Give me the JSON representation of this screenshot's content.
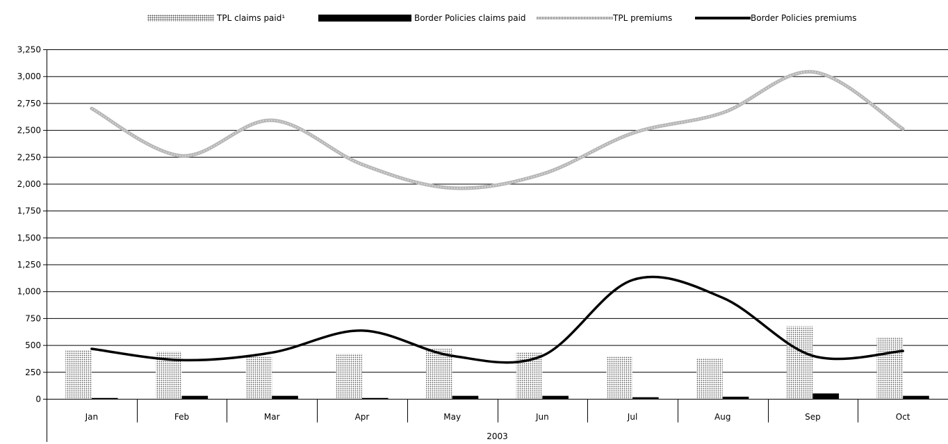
{
  "legend": {
    "tpl_claims": "TPL claims paid¹",
    "border_claims": "Border Policies claims paid",
    "tpl_premiums": "TPL premiums",
    "border_premiums": "Border Policies premiums"
  },
  "colors": {
    "tpl_premiums": "#b5b5b5",
    "border_premiums": "#000000",
    "border_claims": "#000000",
    "tpl_claims_fill": "#9a9a9a",
    "grid": "#000000"
  },
  "chart_data": {
    "type": "bar",
    "categories": [
      "Jan",
      "Feb",
      "Mar",
      "Apr",
      "May",
      "Jun",
      "Jul",
      "Aug",
      "Sep",
      "Oct"
    ],
    "group_label": "2003",
    "ylim": [
      0,
      3250
    ],
    "y_ticks": [
      0,
      250,
      500,
      750,
      1000,
      1250,
      1500,
      1750,
      2000,
      2250,
      2500,
      2750,
      3000,
      3250
    ],
    "y_tick_labels": [
      "0",
      "250",
      "500",
      "750",
      "1,000",
      "1,250",
      "1,500",
      "1,750",
      "2,000",
      "2,250",
      "2,500",
      "2,750",
      "3,000",
      "3,250"
    ],
    "grid": true,
    "legend_position": "top",
    "series": [
      {
        "name": "TPL claims paid¹",
        "kind": "bar",
        "values": [
          455,
          440,
          390,
          420,
          465,
          435,
          395,
          380,
          675,
          575
        ]
      },
      {
        "name": "Border Policies claims paid",
        "kind": "bar",
        "values": [
          8,
          28,
          28,
          8,
          28,
          28,
          15,
          20,
          50,
          28
        ]
      },
      {
        "name": "TPL premiums",
        "kind": "line",
        "values": [
          2700,
          2260,
          2590,
          2180,
          1960,
          2090,
          2470,
          2660,
          3040,
          2510
        ]
      },
      {
        "name": "Border Policies premiums",
        "kind": "line",
        "values": [
          465,
          360,
          430,
          635,
          400,
          400,
          1105,
          940,
          400,
          445
        ]
      }
    ]
  }
}
